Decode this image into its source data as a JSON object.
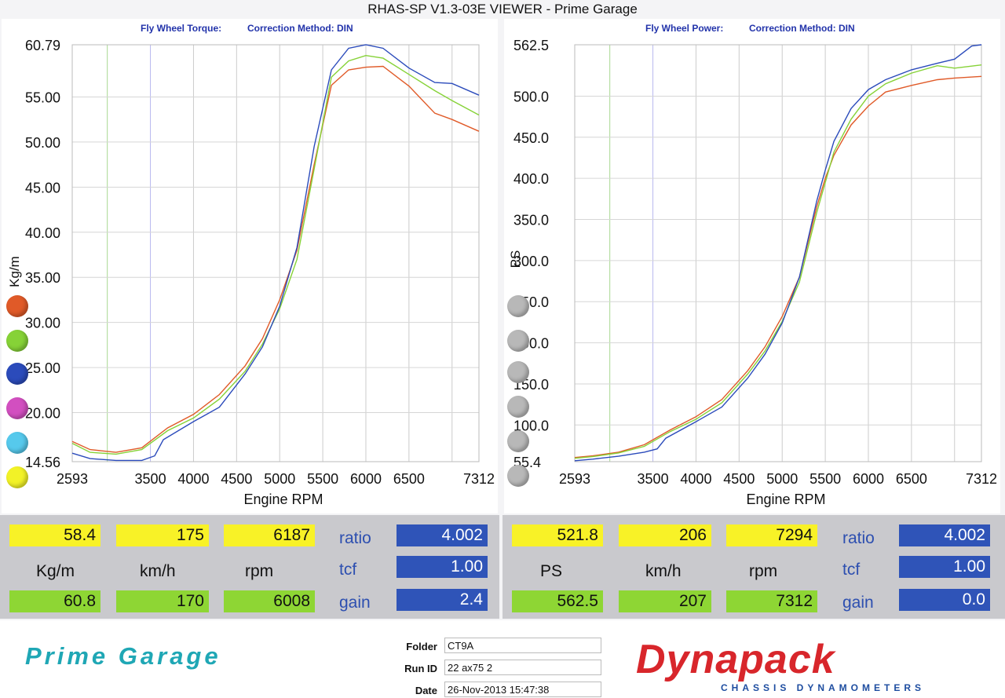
{
  "window": {
    "title": "RHAS-SP V1.3-03E VIEWER - Prime Garage"
  },
  "left_panel": {
    "metric_label": "Fly Wheel Torque:",
    "correction": "Correction Method: DIN"
  },
  "right_panel": {
    "metric_label": "Fly Wheel Power:",
    "correction": "Correction Method: DIN"
  },
  "colors": {
    "orange": "#e05a28",
    "green": "#86d237",
    "blue": "#2b4bbb",
    "pink": "#d24fc0",
    "cyan": "#56c9ec",
    "yellow": "#f2f227",
    "grey": "#b8b8b8"
  },
  "chart_data": [
    {
      "type": "line",
      "title": "",
      "xlabel": "Engine RPM",
      "ylabel": "Kg/m",
      "xlim": [
        2593,
        7312
      ],
      "ylim": [
        14.56,
        60.79
      ],
      "x_ticks": [
        "2593",
        "3500",
        "4000",
        "4500",
        "5000",
        "5500",
        "6000",
        "6500",
        "7312"
      ],
      "y_ticks": [
        "60.79",
        "55.00",
        "50.00",
        "45.00",
        "40.00",
        "35.00",
        "30.00",
        "25.00",
        "20.00",
        "14.56"
      ],
      "grid": true,
      "series": [
        {
          "color": "orange",
          "x": [
            2593,
            2800,
            3100,
            3400,
            3700,
            4000,
            4300,
            4600,
            4800,
            5000,
            5200,
            5400,
            5600,
            5800,
            6000,
            6200,
            6500,
            6800,
            7000,
            7312
          ],
          "y": [
            16.8,
            15.9,
            15.6,
            16.1,
            18.3,
            19.8,
            22.0,
            25.2,
            28.2,
            32.5,
            38.0,
            47.5,
            56.3,
            58.0,
            58.3,
            58.4,
            56.2,
            53.2,
            52.5,
            51.2
          ]
        },
        {
          "color": "green",
          "x": [
            2593,
            2800,
            3100,
            3400,
            3700,
            4000,
            4300,
            4600,
            4800,
            5000,
            5200,
            5400,
            5600,
            5800,
            6000,
            6200,
            6500,
            6800,
            7000,
            7312
          ],
          "y": [
            16.6,
            15.6,
            15.4,
            15.9,
            18.0,
            19.4,
            21.5,
            24.6,
            27.6,
            31.5,
            37.0,
            47.0,
            57.2,
            59.0,
            59.6,
            59.3,
            57.5,
            55.7,
            54.6,
            53.0
          ]
        },
        {
          "color": "blue",
          "x": [
            2593,
            2800,
            3100,
            3400,
            3550,
            3650,
            4000,
            4300,
            4600,
            4800,
            5000,
            5200,
            5400,
            5600,
            5800,
            6000,
            6200,
            6500,
            6800,
            7000,
            7312
          ],
          "y": [
            15.5,
            14.9,
            14.7,
            14.7,
            15.2,
            17.0,
            19.0,
            20.6,
            24.3,
            27.3,
            31.8,
            38.3,
            49.5,
            58.0,
            60.4,
            60.79,
            60.4,
            58.2,
            56.6,
            56.5,
            55.2
          ]
        }
      ]
    },
    {
      "type": "line",
      "title": "",
      "xlabel": "Engine RPM",
      "ylabel": "PS",
      "xlim": [
        2593,
        7312
      ],
      "ylim": [
        55.4,
        562.5
      ],
      "x_ticks": [
        "2593",
        "3500",
        "4000",
        "4500",
        "5000",
        "5500",
        "6000",
        "6500",
        "7312"
      ],
      "y_ticks": [
        "562.5",
        "500.0",
        "450.0",
        "400.0",
        "350.0",
        "300.0",
        "250.0",
        "200.0",
        "150.0",
        "100.0",
        "55.4"
      ],
      "grid": true,
      "series": [
        {
          "color": "orange",
          "x": [
            2593,
            2800,
            3100,
            3400,
            3700,
            4000,
            4300,
            4600,
            4800,
            5000,
            5200,
            5400,
            5500,
            5600,
            5800,
            6000,
            6200,
            6500,
            6800,
            7000,
            7312
          ],
          "y": [
            60.5,
            62.5,
            67,
            76,
            94,
            110,
            131,
            166,
            195,
            232,
            280,
            365,
            400,
            428,
            465,
            488,
            505,
            513,
            520,
            522,
            524
          ]
        },
        {
          "color": "green",
          "x": [
            2593,
            2800,
            3100,
            3400,
            3700,
            4000,
            4300,
            4600,
            4800,
            5000,
            5200,
            5400,
            5500,
            5600,
            5800,
            6000,
            6200,
            6500,
            6800,
            7000,
            7312
          ],
          "y": [
            59.5,
            61.5,
            66,
            74,
            92,
            107,
            127,
            162,
            190,
            226,
            274,
            358,
            395,
            432,
            472,
            500,
            515,
            528,
            537,
            534,
            538
          ]
        },
        {
          "color": "blue",
          "x": [
            2593,
            2800,
            3100,
            3400,
            3550,
            3650,
            4000,
            4300,
            4600,
            4800,
            5000,
            5200,
            5400,
            5500,
            5600,
            5800,
            6000,
            6200,
            6500,
            6800,
            7000,
            7200,
            7312
          ],
          "y": [
            56.5,
            58.5,
            62,
            67,
            71,
            84,
            104,
            122,
            157,
            186,
            224,
            280,
            372,
            410,
            445,
            485,
            508,
            520,
            532,
            540,
            545,
            561,
            562.5
          ]
        }
      ]
    }
  ],
  "left_stats": {
    "row1": [
      "58.4",
      "175",
      "6187"
    ],
    "units": [
      "Kg/m",
      "km/h",
      "rpm"
    ],
    "row2": [
      "60.8",
      "170",
      "6008"
    ],
    "side_labels": [
      "ratio",
      "tcf",
      "gain"
    ],
    "side_values": [
      "4.002",
      "1.00",
      "2.4"
    ]
  },
  "right_stats": {
    "row1": [
      "521.8",
      "206",
      "7294"
    ],
    "units": [
      "PS",
      "km/h",
      "rpm"
    ],
    "row2": [
      "562.5",
      "207",
      "7312"
    ],
    "side_labels": [
      "ratio",
      "tcf",
      "gain"
    ],
    "side_values": [
      "4.002",
      "1.00",
      "0.0"
    ]
  },
  "footer": {
    "brand_left": "Prime Garage",
    "folder_label": "Folder",
    "folder_value": "CT9A",
    "runid_label": "Run ID",
    "runid_value": "22 ax75 2",
    "date_label": "Date",
    "date_value": "26-Nov-2013  15:47:38",
    "brand_right": "Dynapack",
    "brand_right_sub": "CHASSIS DYNAMOMETERS"
  }
}
